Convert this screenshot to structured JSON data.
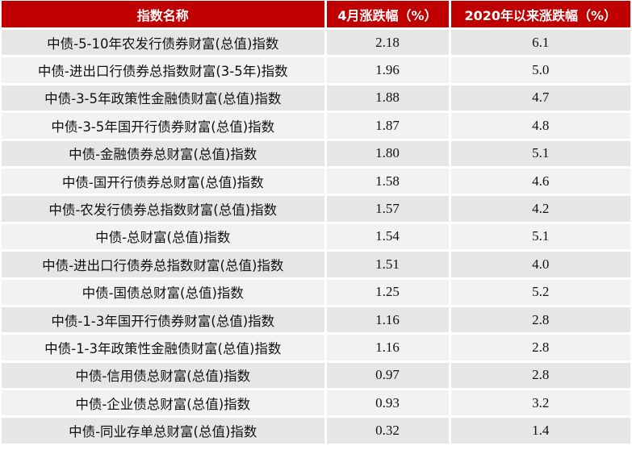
{
  "table": {
    "headers": {
      "name": "指数名称",
      "april": "4月涨跌幅（%）",
      "ytd": "2020年以来涨跌幅（%）"
    },
    "rows": [
      {
        "name": "中债-5-10年农发行债券财富(总值)指数",
        "april": "2.18",
        "ytd": "6.1"
      },
      {
        "name": "中债-进出口行债券总指数财富(3-5年)指数",
        "april": "1.96",
        "ytd": "5.0"
      },
      {
        "name": "中债-3-5年政策性金融债财富(总值)指数",
        "april": "1.88",
        "ytd": "4.7"
      },
      {
        "name": "中债-3-5年国开行债券财富(总值)指数",
        "april": "1.87",
        "ytd": "4.8"
      },
      {
        "name": "中债-金融债券总财富(总值)指数",
        "april": "1.80",
        "ytd": "5.1"
      },
      {
        "name": "中债-国开行债券总财富(总值)指数",
        "april": "1.58",
        "ytd": "4.6"
      },
      {
        "name": "中债-农发行债券总指数财富(总值)指数",
        "april": "1.57",
        "ytd": "4.2"
      },
      {
        "name": "中债-总财富(总值)指数",
        "april": "1.54",
        "ytd": "5.1"
      },
      {
        "name": "中债-进出口行债券总指数财富(总值)指数",
        "april": "1.51",
        "ytd": "4.0"
      },
      {
        "name": "中债-国债总财富(总值)指数",
        "april": "1.25",
        "ytd": "5.2"
      },
      {
        "name": "中债-1-3年国开行债券财富(总值)指数",
        "april": "1.16",
        "ytd": "2.8"
      },
      {
        "name": "中债-1-3年政策性金融债财富(总值)指数",
        "april": "1.16",
        "ytd": "2.8"
      },
      {
        "name": "中债-信用债总财富(总值)指数",
        "april": "0.97",
        "ytd": "2.8"
      },
      {
        "name": "中债-企业债总财富(总值)指数",
        "april": "0.93",
        "ytd": "3.2"
      },
      {
        "name": "中债-同业存单总财富(总值)指数",
        "april": "0.32",
        "ytd": "1.4"
      }
    ]
  },
  "colors": {
    "header_bg": "#c00000",
    "header_text": "#ffffff",
    "row_odd_bg": "#e6e6e6",
    "row_even_bg": "#f2f2f2"
  }
}
